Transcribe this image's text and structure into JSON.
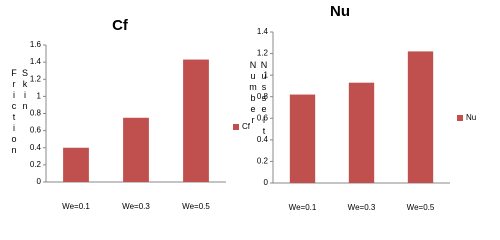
{
  "chart_data": [
    {
      "type": "bar",
      "title": "Cf",
      "y_label": "Skin Friction",
      "categories": [
        "We=0.1",
        "We=0.3",
        "We=0.5"
      ],
      "series": [
        {
          "name": "Cf",
          "color": "#c0504d",
          "values": [
            0.4,
            0.75,
            1.43
          ]
        }
      ],
      "ylim": [
        0,
        1.6
      ],
      "yticks": [
        0,
        0.2,
        0.4,
        0.6,
        0.8,
        1,
        1.2,
        1.4,
        1.6
      ],
      "legend": "right"
    },
    {
      "type": "bar",
      "title": "Nu",
      "y_label": "Nusselt Number",
      "categories": [
        "We=0.1",
        "We=0.3",
        "We=0.5"
      ],
      "series": [
        {
          "name": "Nu",
          "color": "#c0504d",
          "values": [
            0.82,
            0.93,
            1.22
          ]
        }
      ],
      "ylim": [
        0,
        1.4
      ],
      "yticks": [
        0,
        0.2,
        0.4,
        0.6,
        0.8,
        1,
        1.2,
        1.4
      ],
      "legend": "right"
    }
  ]
}
